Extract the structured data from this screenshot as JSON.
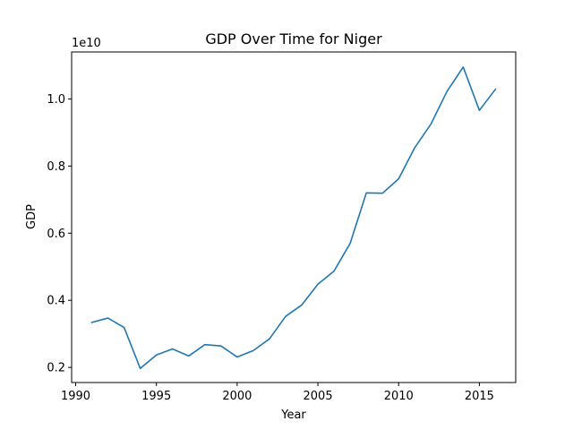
{
  "chart_data": {
    "type": "line",
    "title": "GDP Over Time for Niger",
    "xlabel": "Year",
    "ylabel": "GDP",
    "y_offset_label": "1e10",
    "xlim": [
      1989.75,
      2017.25
    ],
    "ylim": [
      1.55,
      11.4
    ],
    "x_ticks": [
      1990,
      1995,
      2000,
      2005,
      2010,
      2015
    ],
    "x_tick_labels": [
      "1990",
      "1995",
      "2000",
      "2005",
      "2010",
      "2015"
    ],
    "y_ticks": [
      2,
      4,
      6,
      8,
      10
    ],
    "y_tick_labels": [
      "0.2",
      "0.4",
      "0.6",
      "0.8",
      "1.0"
    ],
    "grid": false,
    "series": [
      {
        "color": "#1f77b4",
        "x": [
          1991,
          1992,
          1993,
          1994,
          1995,
          1996,
          1997,
          1998,
          1999,
          2000,
          2001,
          2002,
          2003,
          2004,
          2005,
          2006,
          2007,
          2008,
          2009,
          2010,
          2011,
          2012,
          2013,
          2014,
          2015,
          2016
        ],
        "values": [
          3.34,
          3.47,
          3.19,
          1.97,
          2.37,
          2.55,
          2.34,
          2.68,
          2.64,
          2.31,
          2.5,
          2.85,
          3.52,
          3.86,
          4.48,
          4.87,
          5.7,
          7.2,
          7.19,
          7.62,
          8.55,
          9.25,
          10.23,
          10.95,
          9.66,
          10.29
        ]
      }
    ]
  }
}
